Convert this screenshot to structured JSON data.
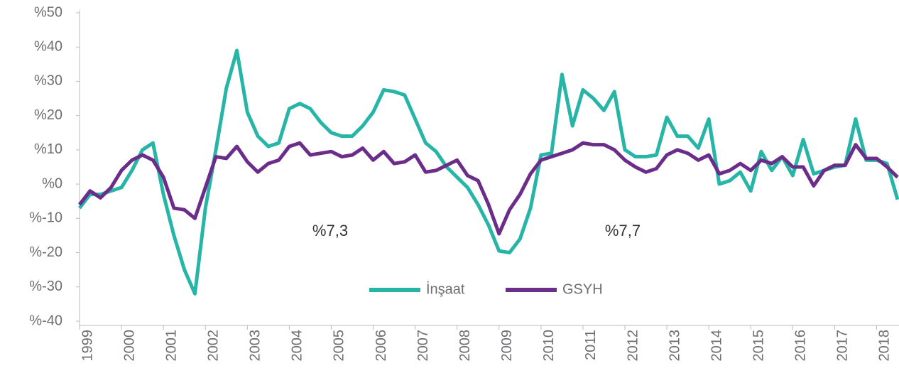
{
  "chart_data": {
    "type": "line",
    "categories": [
      "1999",
      null,
      null,
      null,
      "2000",
      null,
      null,
      null,
      "2001",
      null,
      null,
      null,
      "2002",
      null,
      null,
      null,
      "2003",
      null,
      null,
      null,
      "2004",
      null,
      null,
      null,
      "2005",
      null,
      null,
      null,
      "2006",
      null,
      null,
      null,
      "2007",
      null,
      null,
      null,
      "2008",
      null,
      null,
      null,
      "2009",
      null,
      null,
      null,
      "2010",
      null,
      null,
      null,
      "2011",
      null,
      null,
      null,
      "2012",
      null,
      null,
      null,
      "2013",
      null,
      null,
      null,
      "2014",
      null,
      null,
      null,
      "2015",
      null,
      null,
      null,
      "2016",
      null,
      null,
      null,
      "2017",
      null,
      null,
      null,
      "2018",
      null,
      null
    ],
    "series": [
      {
        "name": "İnşaat",
        "color": "#26b5a6",
        "values": [
          -7,
          -3,
          -3,
          -2,
          -1,
          4,
          10,
          12,
          -3,
          -15,
          -25,
          -32,
          -7,
          10,
          28,
          39,
          21,
          14,
          11,
          12,
          22,
          23.5,
          22,
          18,
          15,
          14,
          14,
          17,
          21,
          27.5,
          27,
          26,
          19,
          12,
          9.5,
          5,
          2,
          -1,
          -6,
          -12,
          -19.5,
          -20,
          -16,
          -7,
          8.5,
          9,
          32,
          17,
          27.5,
          25,
          21.5,
          27,
          10,
          8,
          8,
          8.5,
          19.5,
          14,
          14,
          10.5,
          19,
          0,
          1,
          3.5,
          -2,
          9.5,
          4,
          8,
          2.5,
          13,
          3,
          4,
          5,
          5.5,
          19,
          7,
          7,
          6,
          -4.5
        ]
      },
      {
        "name": "GSYH",
        "color": "#6b2c8a",
        "values": [
          -6,
          -2,
          -4,
          -1,
          4,
          7,
          8.5,
          7,
          2,
          -7,
          -7.5,
          -10,
          -1,
          8,
          7.5,
          11,
          6.5,
          3.5,
          6,
          7,
          11,
          12,
          8.5,
          9,
          9.5,
          8,
          8.5,
          10.5,
          7,
          9.5,
          6,
          6.5,
          8.5,
          3.5,
          4,
          5.5,
          7,
          2.5,
          1,
          -6,
          -14.5,
          -7.5,
          -3,
          3,
          7,
          8,
          9,
          10,
          12,
          11.5,
          11.5,
          10,
          7,
          5,
          3.5,
          4.5,
          8.5,
          10,
          9,
          7,
          8.5,
          3,
          4,
          6,
          4,
          7,
          6,
          8,
          5,
          5,
          -0.5,
          4,
          5.5,
          5.5,
          11.5,
          7.5,
          7.5,
          5,
          2
        ]
      }
    ],
    "ylim": [
      -40,
      50
    ],
    "yticks": [
      {
        "value": 50,
        "label": "%50"
      },
      {
        "value": 40,
        "label": "%40"
      },
      {
        "value": 30,
        "label": "%30"
      },
      {
        "value": 20,
        "label": "%20"
      },
      {
        "value": 10,
        "label": "%10"
      },
      {
        "value": 0,
        "label": "%0"
      },
      {
        "value": -10,
        "label": "%-10"
      },
      {
        "value": -20,
        "label": "%-20"
      },
      {
        "value": -30,
        "label": "%-30"
      },
      {
        "value": -40,
        "label": "%-40"
      }
    ],
    "annotations": [
      "%7,3",
      "%7,7"
    ],
    "legend": "bottom"
  }
}
